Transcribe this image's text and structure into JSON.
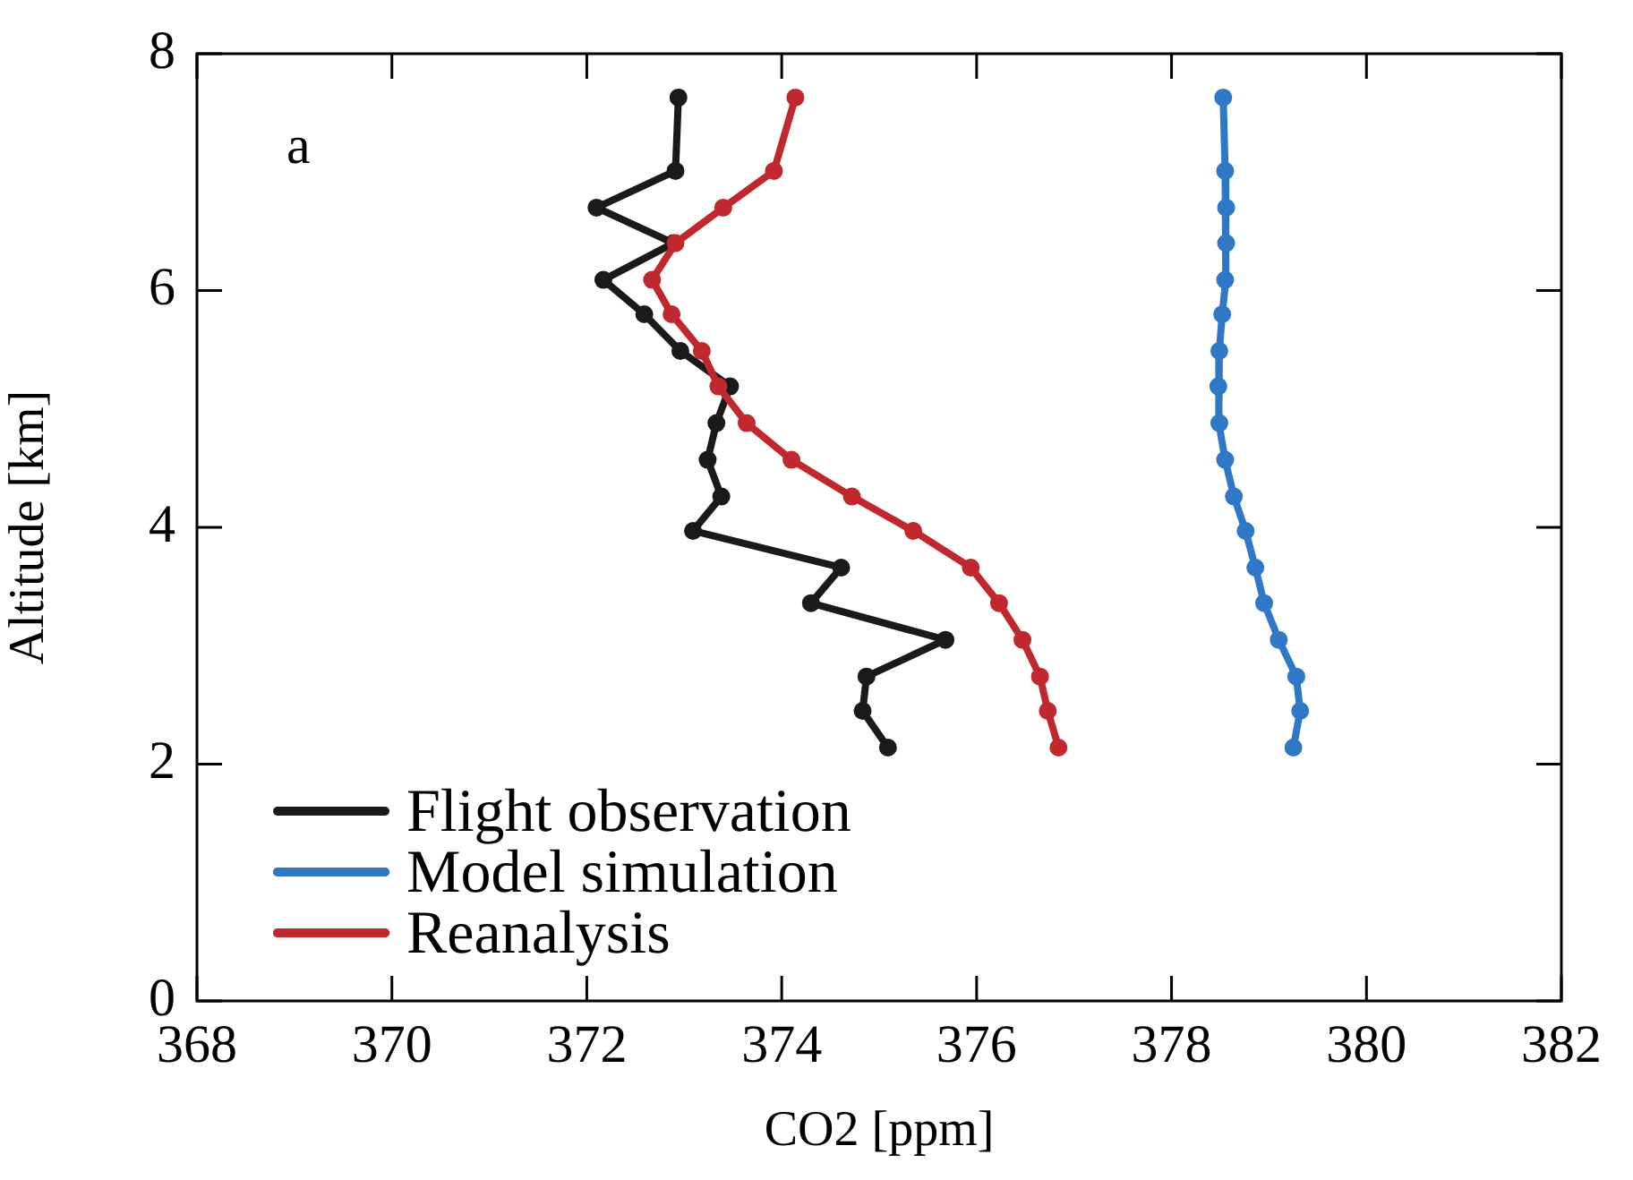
{
  "chart_data": {
    "type": "line",
    "xlabel": "CO2 [ppm]",
    "ylabel": "Altitude [km]",
    "annotations": [
      "a"
    ],
    "xlim": [
      368,
      382
    ],
    "xticks": [
      368,
      370,
      372,
      374,
      376,
      378,
      380,
      382
    ],
    "ylim": [
      0,
      8
    ],
    "yticks": [
      0,
      2,
      4,
      6,
      8
    ],
    "marker": "circle",
    "line_style": "solid",
    "legend": "bottom left",
    "series": [
      {
        "name": "Flight observation",
        "color": "#1a1a1a",
        "x": [
          372.94,
          372.91,
          372.1,
          372.89,
          372.17,
          372.59,
          372.96,
          373.47,
          373.33,
          373.24,
          373.38,
          373.09,
          374.61,
          374.3,
          375.68,
          374.87,
          374.83,
          375.09
        ],
        "values": [
          7.63,
          7.01,
          6.7,
          6.4,
          6.09,
          5.8,
          5.49,
          5.19,
          4.88,
          4.57,
          4.26,
          3.97,
          3.66,
          3.36,
          3.05,
          2.74,
          2.45,
          2.14
        ]
      },
      {
        "name": "Model simulation",
        "color": "#2f78c8",
        "x": [
          378.53,
          378.55,
          378.56,
          378.56,
          378.55,
          378.52,
          378.49,
          378.48,
          378.49,
          378.55,
          378.64,
          378.76,
          378.86,
          378.95,
          379.1,
          379.28,
          379.32,
          379.25
        ],
        "values": [
          7.63,
          7.01,
          6.7,
          6.4,
          6.09,
          5.8,
          5.49,
          5.19,
          4.88,
          4.57,
          4.26,
          3.97,
          3.66,
          3.36,
          3.05,
          2.74,
          2.45,
          2.14
        ]
      },
      {
        "name": "Reanalysis",
        "color": "#c0282d",
        "x": [
          374.14,
          373.92,
          373.4,
          372.91,
          372.67,
          372.87,
          373.18,
          373.35,
          373.64,
          374.1,
          374.72,
          375.35,
          375.94,
          376.23,
          376.47,
          376.65,
          376.73,
          376.84
        ],
        "values": [
          7.63,
          7.01,
          6.7,
          6.4,
          6.09,
          5.8,
          5.49,
          5.19,
          4.88,
          4.57,
          4.26,
          3.97,
          3.66,
          3.36,
          3.05,
          2.74,
          2.45,
          2.14
        ]
      }
    ]
  }
}
